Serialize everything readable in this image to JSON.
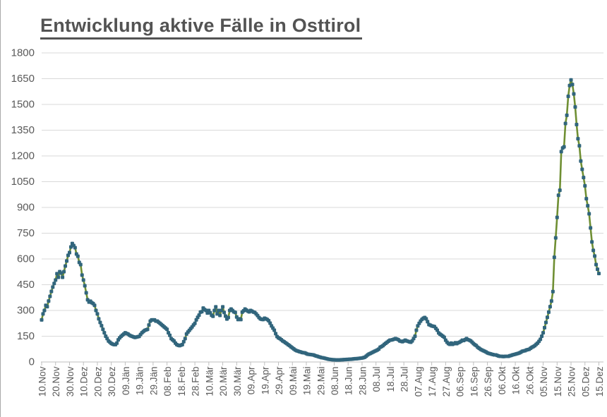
{
  "title": "Entwicklung aktive Fälle in Osttirol",
  "colors": {
    "line": "#6f8f33",
    "marker": "#31657c",
    "grid": "#d9d9d9",
    "axis": "#bfbfbf",
    "text": "#595959",
    "title_text": "#535353"
  },
  "chart_data": {
    "type": "line",
    "title": "Entwicklung aktive Fälle in Osttirol",
    "xlabel": "",
    "ylabel": "",
    "ylim": [
      0,
      1800
    ],
    "y_ticks": [
      0,
      150,
      300,
      450,
      600,
      750,
      900,
      1050,
      1200,
      1350,
      1500,
      1650,
      1800
    ],
    "grid": "horizontal",
    "legend": "none",
    "x_tick_every_days": 10,
    "x_tick_labels": [
      "10.Nov",
      "20.Nov",
      "30.Nov",
      "10.Dez",
      "20.Dez",
      "30.Dez",
      "09.Jän",
      "19.Jän",
      "29.Jän",
      "08.Feb",
      "18.Feb",
      "28.Feb",
      "10.Mär",
      "20.Mär",
      "30.Mär",
      "09.Apr",
      "19.Apr",
      "29.Apr",
      "09.Mai",
      "19.Mai",
      "29.Mai",
      "08.Jun",
      "18.Jun",
      "28.Jun",
      "08.Jul",
      "18.Jul",
      "28.Jul",
      "07.Aug",
      "17.Aug",
      "27.Aug",
      "06.Sep",
      "16.Sep",
      "26.Sep",
      "06.Okt",
      "16.Okt",
      "26.Okt",
      "05.Nov",
      "15.Nov",
      "25.Nov",
      "05.Dez",
      "15.Dez"
    ],
    "series": [
      {
        "name": "aktive Fälle",
        "marker": "square",
        "values": [
          245,
          280,
          300,
          330,
          322,
          355,
          382,
          411,
          436,
          457,
          477,
          514,
          493,
          526,
          518,
          493,
          526,
          559,
          588,
          621,
          637,
          670,
          690,
          678,
          666,
          629,
          616,
          580,
          567,
          506,
          477,
          444,
          403,
          362,
          349,
          354,
          345,
          340,
          330,
          300,
          280,
          251,
          230,
          211,
          190,
          170,
          150,
          136,
          122,
          115,
          108,
          104,
          101,
          101,
          110,
          129,
          140,
          149,
          156,
          163,
          170,
          166,
          163,
          156,
          152,
          149,
          146,
          143,
          145,
          147,
          149,
          160,
          170,
          177,
          184,
          187,
          190,
          215,
          238,
          245,
          245,
          245,
          238,
          238,
          231,
          225,
          218,
          211,
          204,
          197,
          190,
          170,
          155,
          136,
          129,
          122,
          110,
          101,
          97,
          95,
          98,
          101,
          118,
          136,
          163,
          174,
          184,
          194,
          204,
          215,
          225,
          245,
          260,
          273,
          290,
          293,
          314,
          305,
          300,
          285,
          300,
          286,
          272,
          266,
          300,
          321,
          280,
          300,
          271,
          300,
          321,
          288,
          267,
          250,
          259,
          300,
          308,
          300,
          292,
          288,
          262,
          247,
          251,
          247,
          290,
          298,
          308,
          302,
          296,
          292,
          300,
          296,
          291,
          288,
          280,
          270,
          259,
          251,
          248,
          247,
          255,
          251,
          247,
          240,
          226,
          210,
          197,
          185,
          165,
          148,
          140,
          136,
          130,
          123,
          118,
          112,
          107,
          100,
          95,
          88,
          82,
          76,
          70,
          66,
          63,
          60,
          58,
          55,
          54,
          53,
          49,
          45,
          44,
          43,
          42,
          41,
          38,
          35,
          33,
          30,
          28,
          25,
          24,
          22,
          20,
          18,
          16,
          15,
          14,
          13,
          13,
          12,
          12,
          12,
          12,
          13,
          13,
          14,
          14,
          15,
          15,
          16,
          16,
          17,
          18,
          19,
          19,
          20,
          21,
          22,
          23,
          25,
          28,
          34,
          41,
          46,
          50,
          54,
          58,
          62,
          66,
          70,
          75,
          86,
          90,
          95,
          103,
          109,
          115,
          121,
          127,
          128,
          130,
          133,
          136,
          133,
          130,
          123,
          120,
          118,
          122,
          127,
          123,
          120,
          117,
          115,
          123,
          136,
          150,
          185,
          210,
          225,
          238,
          248,
          255,
          259,
          251,
          235,
          218,
          214,
          210,
          208,
          206,
          195,
          185,
          169,
          162,
          156,
          150,
          144,
          127,
          115,
          107,
          103,
          110,
          103,
          107,
          112,
          107,
          112,
          115,
          120,
          127,
          125,
          130,
          136,
          130,
          127,
          123,
          115,
          107,
          100,
          95,
          86,
          80,
          74,
          70,
          66,
          62,
          58,
          53,
          50,
          48,
          45,
          43,
          41,
          41,
          38,
          35,
          33,
          33,
          32,
          32,
          33,
          33,
          33,
          36,
          38,
          41,
          43,
          45,
          48,
          50,
          53,
          57,
          62,
          64,
          66,
          70,
          72,
          74,
          80,
          86,
          90,
          95,
          103,
          110,
          120,
          132,
          150,
          170,
          200,
          230,
          260,
          290,
          322,
          355,
          410,
          610,
          723,
          842,
          971,
          1000,
          1225,
          1246,
          1253,
          1389,
          1437,
          1547,
          1610,
          1643,
          1616,
          1561,
          1485,
          1383,
          1300,
          1259,
          1170,
          1122,
          1074,
          1026,
          951,
          910,
          863,
          781,
          699,
          650,
          617,
          567,
          540,
          515
        ]
      }
    ]
  }
}
